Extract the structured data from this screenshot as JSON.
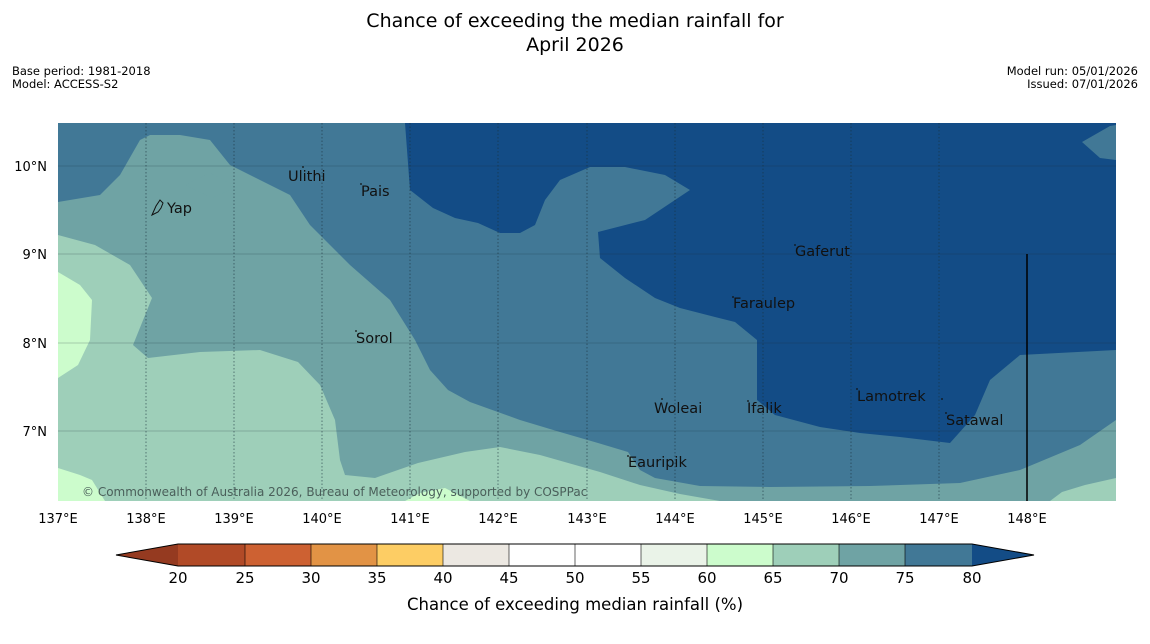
{
  "header": {
    "title_line1": "Chance of exceeding the median rainfall for",
    "title_line2": "April 2026",
    "base_period": "Base period: 1981-2018",
    "model": "Model: ACCESS-S2",
    "model_run": "Model run: 05/01/2026",
    "issued": "Issued: 07/01/2026"
  },
  "map": {
    "lon_ticks": [
      "137°E",
      "138°E",
      "139°E",
      "140°E",
      "141°E",
      "142°E",
      "143°E",
      "144°E",
      "145°E",
      "146°E",
      "147°E",
      "148°E"
    ],
    "lat_ticks": [
      "10°N",
      "9°N",
      "8°N",
      "7°N"
    ],
    "places": [
      "Ulithi",
      "Pais",
      "Yap",
      "Gaferut",
      "Faraulep",
      "Sorol",
      "Lamotrek",
      "Woleai",
      "Ifalik",
      "Satawal",
      "Eauripik"
    ],
    "credit": "© Commonwealth of Australia 2026, Bureau of Meteorology, supported by COSPPac"
  },
  "colorbar": {
    "ticks": [
      "20",
      "25",
      "30",
      "35",
      "40",
      "45",
      "50",
      "55",
      "60",
      "65",
      "70",
      "75",
      "80"
    ],
    "label": "Chance of exceeding median rainfall (%)",
    "colors": {
      "lt20": "#953a20",
      "c20_25": "#b14a27",
      "c25_30": "#cd6132",
      "c30_35": "#e29345",
      "c35_40": "#fdcd64",
      "c40_45": "#ece8e2",
      "c45_55": "#ffffff",
      "c55_60": "#eaf3e8",
      "c60_65": "#ccfccc",
      "c65_70": "#9ecfb9",
      "c70_75": "#6fa3a4",
      "c75_80": "#417896",
      "gt80": "#134c86"
    }
  }
}
